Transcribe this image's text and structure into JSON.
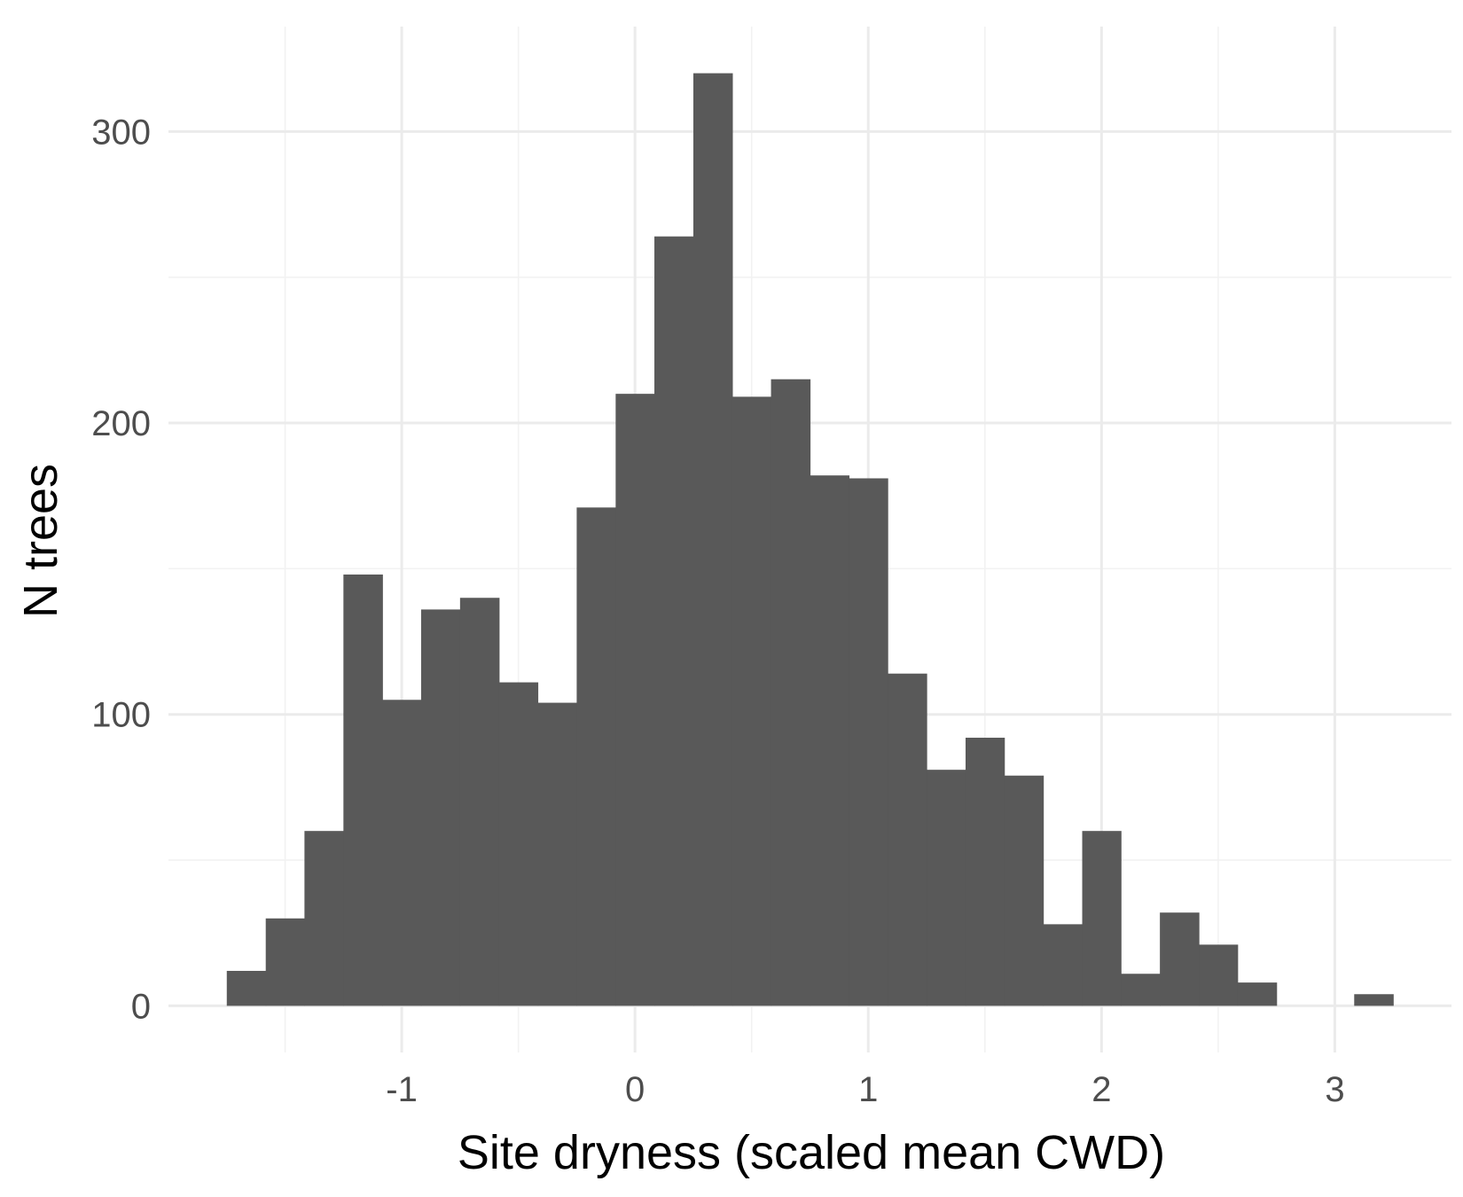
{
  "chart_data": {
    "type": "bar",
    "xlabel": "Site dryness (scaled mean CWD)",
    "ylabel": "N trees",
    "xlim": [
      -2.0,
      3.5
    ],
    "ylim": [
      -16,
      336
    ],
    "x_ticks": [
      -1,
      0,
      1,
      2,
      3
    ],
    "x_tick_labels": [
      "-1",
      "0",
      "1",
      "2",
      "3"
    ],
    "y_ticks": [
      0,
      100,
      200,
      300
    ],
    "y_tick_labels": [
      "0",
      "100",
      "200",
      "300"
    ],
    "grid": true,
    "bin_width": 0.1667,
    "bins": [
      {
        "x0": -1.75,
        "x1": -1.583,
        "count": 12
      },
      {
        "x0": -1.583,
        "x1": -1.417,
        "count": 30
      },
      {
        "x0": -1.417,
        "x1": -1.25,
        "count": 60
      },
      {
        "x0": -1.25,
        "x1": -1.083,
        "count": 148
      },
      {
        "x0": -1.083,
        "x1": -0.917,
        "count": 105
      },
      {
        "x0": -0.917,
        "x1": -0.75,
        "count": 136
      },
      {
        "x0": -0.75,
        "x1": -0.583,
        "count": 140
      },
      {
        "x0": -0.583,
        "x1": -0.417,
        "count": 111
      },
      {
        "x0": -0.417,
        "x1": -0.25,
        "count": 104
      },
      {
        "x0": -0.25,
        "x1": -0.083,
        "count": 171
      },
      {
        "x0": -0.083,
        "x1": 0.083,
        "count": 210
      },
      {
        "x0": 0.083,
        "x1": 0.25,
        "count": 264
      },
      {
        "x0": 0.25,
        "x1": 0.417,
        "count": 320
      },
      {
        "x0": 0.417,
        "x1": 0.583,
        "count": 209
      },
      {
        "x0": 0.583,
        "x1": 0.75,
        "count": 215
      },
      {
        "x0": 0.75,
        "x1": 0.917,
        "count": 182
      },
      {
        "x0": 0.917,
        "x1": 1.083,
        "count": 181
      },
      {
        "x0": 1.083,
        "x1": 1.25,
        "count": 114
      },
      {
        "x0": 1.25,
        "x1": 1.417,
        "count": 81
      },
      {
        "x0": 1.417,
        "x1": 1.583,
        "count": 92
      },
      {
        "x0": 1.583,
        "x1": 1.75,
        "count": 79
      },
      {
        "x0": 1.75,
        "x1": 1.917,
        "count": 28
      },
      {
        "x0": 1.917,
        "x1": 2.083,
        "count": 60
      },
      {
        "x0": 2.083,
        "x1": 2.25,
        "count": 11
      },
      {
        "x0": 2.25,
        "x1": 2.417,
        "count": 32
      },
      {
        "x0": 2.417,
        "x1": 2.583,
        "count": 21
      },
      {
        "x0": 2.583,
        "x1": 2.75,
        "count": 8
      },
      {
        "x0": 2.75,
        "x1": 2.917,
        "count": 0
      },
      {
        "x0": 2.917,
        "x1": 3.083,
        "count": 0
      },
      {
        "x0": 3.083,
        "x1": 3.25,
        "count": 4
      }
    ],
    "colors": {
      "bar": "#595959",
      "grid_major": "#ebebeb",
      "grid_minor": "#f2f2f2"
    }
  }
}
